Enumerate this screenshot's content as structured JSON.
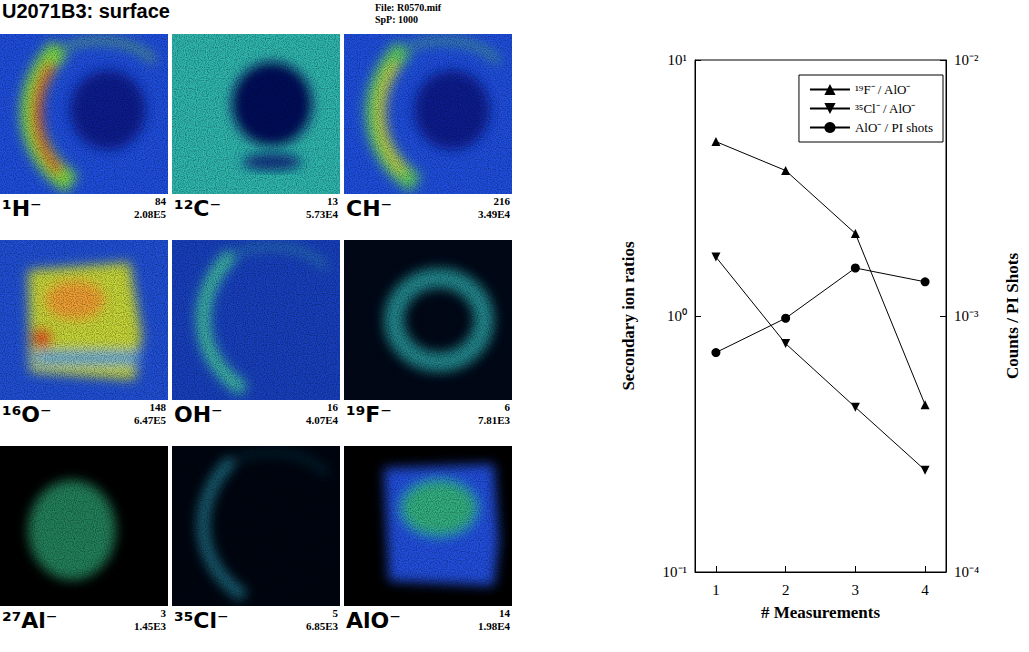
{
  "header": {
    "title": "U2071B3: surface",
    "file": "File: R0570.mif",
    "spp": "SpP: 1000"
  },
  "panels": [
    {
      "ion": "¹H⁻",
      "max": 84,
      "counts": "2.08E5"
    },
    {
      "ion": "¹²C⁻",
      "max": 13,
      "counts": "5.73E4"
    },
    {
      "ion": "CH⁻",
      "max": 216,
      "counts": "3.49E4"
    },
    {
      "ion": "¹⁶O⁻",
      "max": 148,
      "counts": "6.47E5"
    },
    {
      "ion": "OH⁻",
      "max": 16,
      "counts": "4.07E4"
    },
    {
      "ion": "¹⁹F⁻",
      "max": 6,
      "counts": "7.81E3"
    },
    {
      "ion": "²⁷Al⁻",
      "max": 3,
      "counts": "1.45E3"
    },
    {
      "ion": "³⁵Cl⁻",
      "max": 5,
      "counts": "6.85E3"
    },
    {
      "ion": "AlO⁻",
      "max": 14,
      "counts": "1.98E4"
    }
  ],
  "chart_data": {
    "type": "line",
    "xlabel": "# Measurements",
    "ylabel": "Secondary ion ratios",
    "y2label": "Counts / PI Shots",
    "x": [
      1,
      2,
      3,
      4
    ],
    "xlim": [
      0.7,
      4.3
    ],
    "xticks": [
      1,
      2,
      3,
      4
    ],
    "ylim": [
      0.1,
      10
    ],
    "yticks": [
      {
        "value": 0.1,
        "label": "10⁻¹"
      },
      {
        "value": 1,
        "label": "10⁰"
      },
      {
        "value": 10,
        "label": "10¹"
      }
    ],
    "y2lim": [
      0.0001,
      0.01
    ],
    "y2ticks": [
      {
        "value": 0.0001,
        "label": "10⁻⁴"
      },
      {
        "value": 0.001,
        "label": "10⁻³"
      },
      {
        "value": 0.01,
        "label": "10⁻²"
      }
    ],
    "log": "y",
    "grid": false,
    "legend": "upper right",
    "series": [
      {
        "name": "¹⁹F⁻ / AlO⁻",
        "color": "#000000",
        "marker": "triangle",
        "line_style": "solid",
        "axis": "y",
        "values": [
          4.8,
          3.7,
          2.1,
          0.45
        ]
      },
      {
        "name": "³⁵Cl⁻ / AlO⁻",
        "color": "#000000",
        "marker": "triangle_down",
        "line_style": "solid",
        "axis": "y",
        "values": [
          1.7,
          0.78,
          0.44,
          0.25
        ]
      },
      {
        "name": "AlO⁻ / PI shots",
        "color": "#000000",
        "marker": "circle",
        "line_style": "solid",
        "axis": "y2",
        "values": [
          0.00072,
          0.00098,
          0.00154,
          0.00136
        ]
      }
    ]
  }
}
